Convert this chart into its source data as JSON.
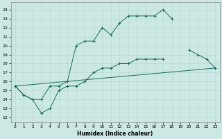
{
  "xlabel": "Humidex (Indice chaleur)",
  "xlim": [
    -0.5,
    23.5
  ],
  "ylim": [
    11.5,
    24.8
  ],
  "xticks": [
    0,
    1,
    2,
    3,
    4,
    5,
    6,
    7,
    8,
    9,
    10,
    11,
    12,
    13,
    14,
    15,
    16,
    17,
    18,
    19,
    20,
    21,
    22,
    23
  ],
  "yticks": [
    12,
    13,
    14,
    15,
    16,
    17,
    18,
    19,
    20,
    21,
    22,
    23,
    24
  ],
  "bg_color": "#cce8e4",
  "line_color": "#1a6b5a",
  "grid_color": "#b8d8d4",
  "line1_x": [
    0,
    1,
    2,
    3,
    4,
    5,
    6,
    7,
    8,
    9,
    10,
    11,
    12,
    13,
    14,
    15,
    16,
    17,
    18,
    19,
    20,
    21
  ],
  "line1_y": [
    15.5,
    14.5,
    14.0,
    14.0,
    15.5,
    15.5,
    16.0,
    20.0,
    20.5,
    20.5,
    22.0,
    21.2,
    22.5,
    23.3,
    23.3,
    23.3,
    23.3,
    24.0,
    23.0,
    null,
    null,
    null
  ],
  "line2_x": [
    0,
    1,
    2,
    3,
    4,
    5,
    6,
    7,
    8,
    9,
    10,
    11,
    12,
    13,
    14,
    15,
    16,
    17,
    18,
    19,
    20,
    21,
    22,
    23
  ],
  "line2_y": [
    15.5,
    14.5,
    14.0,
    12.5,
    13.0,
    15.0,
    15.5,
    15.5,
    16.0,
    17.0,
    17.5,
    17.5,
    18.0,
    18.0,
    18.5,
    18.5,
    18.5,
    18.5,
    null,
    null,
    19.5,
    19.0,
    18.5,
    17.5
  ],
  "line3_x": [
    0,
    23
  ],
  "line3_y": [
    15.5,
    17.5
  ]
}
